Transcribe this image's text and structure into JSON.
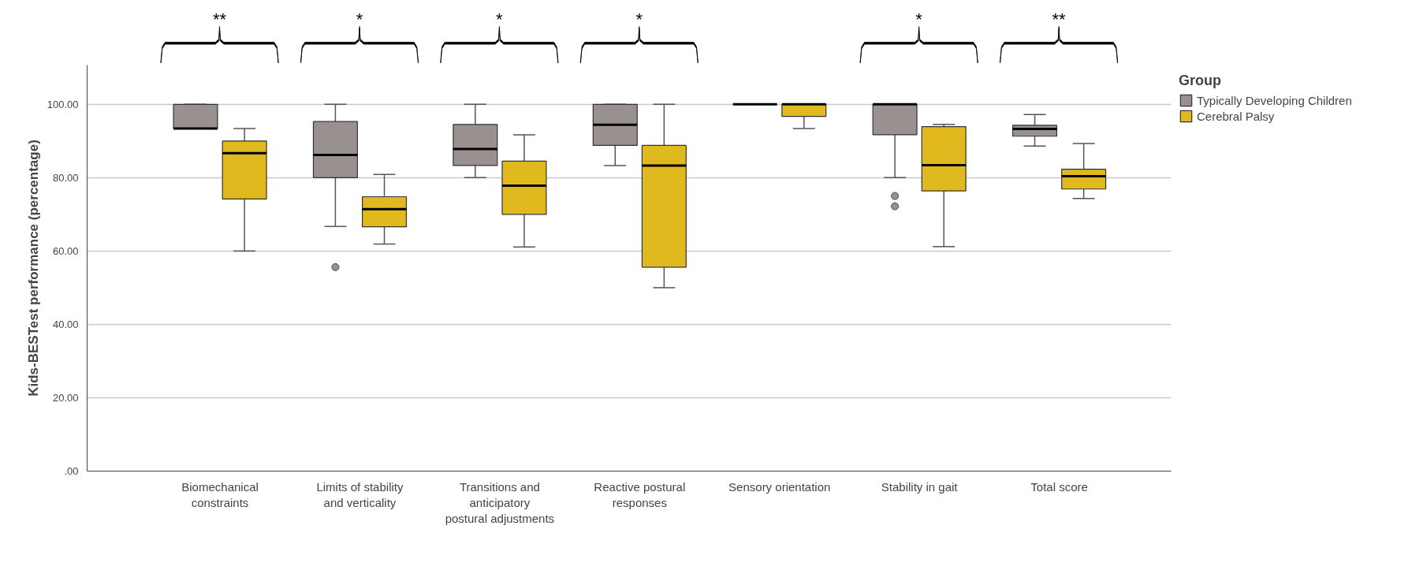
{
  "chart_data": {
    "type": "box",
    "categories": [
      "Biomechanical constraints",
      "Limits of stability and verticality",
      "Transitions and anticipatory postural adjustments",
      "Reactive postural responses",
      "Sensory orientation",
      "Stability in gait",
      "Total score"
    ],
    "ylabel": "Kids-BESTest performance (percentage)",
    "legend_title": "Group",
    "ylim": [
      0,
      110.7
    ],
    "yticks": [
      {
        "value": 0,
        "label": ".00"
      },
      {
        "value": 20,
        "label": "20.00"
      },
      {
        "value": 40,
        "label": "40.00"
      },
      {
        "value": 60,
        "label": "60.00"
      },
      {
        "value": 80,
        "label": "80.00"
      },
      {
        "value": 100,
        "label": "100.00"
      }
    ],
    "grid": "y",
    "legend": "right",
    "series": [
      {
        "name": "Typically Developing Children",
        "color": "#98918f",
        "boxes": [
          {
            "low": 93.4,
            "q1": 93.4,
            "median": 93.4,
            "q3": 100,
            "high": 100
          },
          {
            "low": 66.7,
            "q1": 80,
            "median": 86.2,
            "q3": 95.3,
            "high": 100,
            "outliers": [
              55.6
            ]
          },
          {
            "low": 80,
            "q1": 83.3,
            "median": 87.8,
            "q3": 94.5,
            "high": 100
          },
          {
            "low": 83.3,
            "q1": 88.8,
            "median": 94.4,
            "q3": 100,
            "high": 100
          },
          {
            "low": 100,
            "q1": 100,
            "median": 100,
            "q3": 100,
            "high": 100
          },
          {
            "low": 80,
            "q1": 91.7,
            "median": 100,
            "q3": 100,
            "high": 100,
            "outliers": [
              75.0,
              72.2
            ]
          },
          {
            "low": 88.6,
            "q1": 91.3,
            "median": 93.3,
            "q3": 94.3,
            "high": 97.2
          }
        ]
      },
      {
        "name": "Cerebral Palsy",
        "color": "#e0b91f",
        "boxes": [
          {
            "low": 60,
            "q1": 74.2,
            "median": 86.7,
            "q3": 90.0,
            "high": 93.4
          },
          {
            "low": 61.9,
            "q1": 66.6,
            "median": 71.4,
            "q3": 74.8,
            "high": 80.9
          },
          {
            "low": 61.1,
            "q1": 70.0,
            "median": 77.8,
            "q3": 84.5,
            "high": 91.7
          },
          {
            "low": 50.0,
            "q1": 55.6,
            "median": 83.3,
            "q3": 88.8,
            "high": 100
          },
          {
            "low": 93.4,
            "q1": 96.7,
            "median": 100,
            "q3": 100,
            "high": 100
          },
          {
            "low": 61.2,
            "q1": 76.4,
            "median": 83.4,
            "q3": 93.9,
            "high": 94.5
          },
          {
            "low": 74.3,
            "q1": 76.9,
            "median": 80.4,
            "q3": 82.3,
            "high": 89.3
          }
        ]
      }
    ],
    "annotations": [
      "**",
      "*",
      "*",
      "*",
      "*",
      "**"
    ]
  }
}
